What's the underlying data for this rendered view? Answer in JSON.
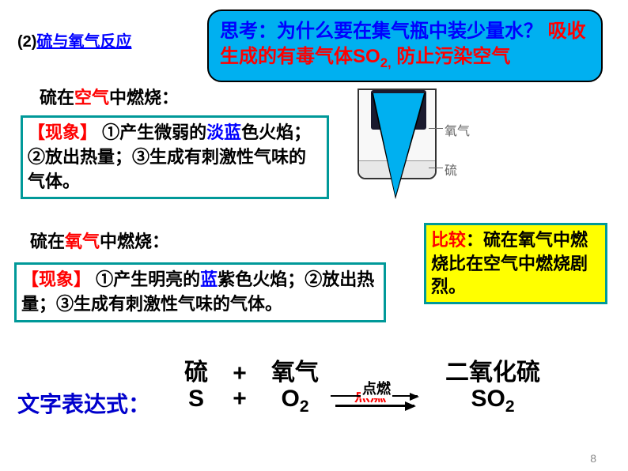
{
  "bubble": {
    "q_prefix": "思考：",
    "q_text": "为什么要在集气瓶中装少量水？",
    "a_text_1": "吸收生成的有毒气体SO",
    "a_sub": "2,",
    "a_text_2": "防止污染空气",
    "colors": {
      "bg": "#00b0f0",
      "q": "#0000ff",
      "a": "#ff0000"
    }
  },
  "section": {
    "num": "(2)",
    "title": "硫与氧气反应"
  },
  "sub1": {
    "pre": "硫在",
    "mid": "空气",
    "post": "中燃烧："
  },
  "sub2": {
    "pre": "硫在",
    "mid": "氧气",
    "post": "中燃烧："
  },
  "phenom1": {
    "tag": "【现象】",
    "t1": "①产生微弱的",
    "t2": "淡蓝",
    "t3": "色火焰；②放出热量；③生成有刺激性气味的气体。"
  },
  "phenom2": {
    "tag": "【现象】",
    "t1": "①产生明亮的",
    "t2a": "蓝",
    "t2b": "紫",
    "t3": "色火焰；②放出热量；③生成有刺激性气味的气体。"
  },
  "compare": {
    "tag": "比较",
    "sep": "："
  },
  "compare_body": "硫在氧气中燃烧比在空气中燃烧剧烈。",
  "equation": {
    "label": "文字表达式：",
    "word": {
      "s": "硫",
      "plus": "+",
      "o": "氧气",
      "cond": "点燃",
      "p": "二氧化硫"
    },
    "sym": {
      "s": "S",
      "plus": "+",
      "o": "O",
      "o_sub": "2",
      "cond": "点燃",
      "p": "SO",
      "p_sub": "2"
    }
  },
  "diagram": {
    "label_oxy": "氧气",
    "label_sul": "硫"
  },
  "page": "8"
}
